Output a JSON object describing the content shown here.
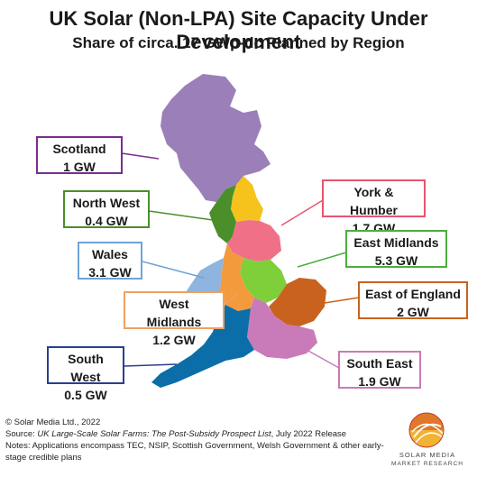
{
  "title": "UK Solar (Non-LPA) Site Capacity Under Development",
  "subtitle": "Share of circa. 17 GWp-dc Planned by Region",
  "regions": {
    "scotland": {
      "name": "Scotland",
      "value": "1 GW",
      "color": "#9b7fb8",
      "border": "#7b2d8e"
    },
    "north_west": {
      "name": "North West",
      "value": "0.4 GW",
      "color": "#4a8f2a",
      "border": "#4a8f2a"
    },
    "york_humber": {
      "name": "York & Humber",
      "value": "1.7 GW",
      "color": "#f07088",
      "border": "#e8546e"
    },
    "east_midlands": {
      "name": "East Midlands",
      "value": "5.3 GW",
      "color": "#7ecf3a",
      "border": "#4cae3e"
    },
    "wales": {
      "name": "Wales",
      "value": "3.1 GW",
      "color": "#8fb4dd",
      "border": "#6fa3d8"
    },
    "west_midlands": {
      "name": "West Midlands",
      "value": "1.2 GW",
      "color": "#f39a3c",
      "border": "#f0a060"
    },
    "east_of_england": {
      "name": "East of England",
      "value": "2 GW",
      "color": "#c9621e",
      "border": "#c9621e"
    },
    "south_west": {
      "name": "South West",
      "value": "0.5 GW",
      "color": "#0b6ea8",
      "border": "#2a3f8f"
    },
    "south_east": {
      "name": "South East",
      "value": "1.9 GW",
      "color": "#c97ab8",
      "border": "#c97ab8"
    },
    "north_east": {
      "color": "#f5c31c"
    },
    "london": {
      "color": "#7aa7d6"
    }
  },
  "footer": {
    "copyright": "© Solar Media Ltd., 2022",
    "source_prefix": "Source: ",
    "source_title": "UK Large-Scale Solar Farms: The Post-Subsidy Prospect List",
    "source_suffix": ", July 2022 Release",
    "notes": "Notes: Applications encompass TEC, NSIP, Scottish Government, Welsh Government & other early-stage credible plans"
  },
  "logo": {
    "line1": "SOLAR MEDIA",
    "line2": "MARKET RESEARCH"
  }
}
